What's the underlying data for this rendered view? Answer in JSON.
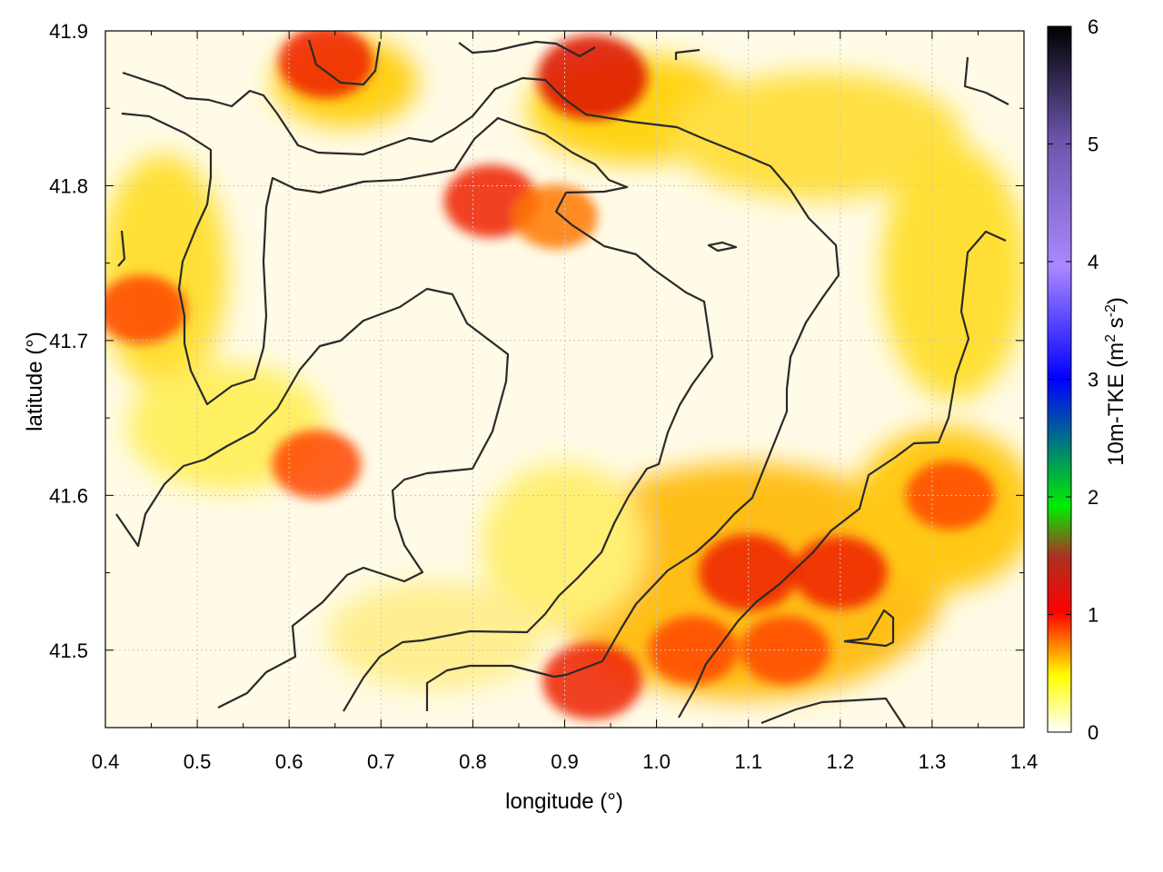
{
  "chart_data": {
    "type": "heatmap",
    "title": "",
    "xlabel": "longitude (°)",
    "ylabel": "latitude (°)",
    "xlim": [
      0.4,
      1.4
    ],
    "ylim": [
      41.45,
      41.9
    ],
    "xticks": [
      "0.4",
      "0.5",
      "0.6",
      "0.7",
      "0.8",
      "0.9",
      "1.0",
      "1.1",
      "1.2",
      "1.3",
      "1.4"
    ],
    "yticks": [
      "41.5",
      "41.6",
      "41.7",
      "41.8",
      "41.9"
    ],
    "grid": true,
    "colorbar": {
      "label_main": "10m-TKE (m",
      "label_sup1": "2",
      "label_mid": " s",
      "label_sup2": "-2",
      "label_end": ")",
      "range": [
        0,
        6
      ],
      "ticks": [
        "0",
        "1",
        "2",
        "3",
        "4",
        "5",
        "6"
      ],
      "colormap": [
        "#ffffff",
        "#ffff00",
        "#ff0000",
        "#00ff00",
        "#0000ff",
        "#aa88ff",
        "#000000"
      ]
    },
    "hotspots": [
      {
        "lon": 0.93,
        "lat": 41.87,
        "value": 1.3
      },
      {
        "lon": 0.64,
        "lat": 41.88,
        "value": 1.0
      },
      {
        "lon": 0.82,
        "lat": 41.79,
        "value": 1.0
      },
      {
        "lon": 0.89,
        "lat": 41.78,
        "value": 0.8
      },
      {
        "lon": 0.44,
        "lat": 41.72,
        "value": 0.9
      },
      {
        "lon": 0.63,
        "lat": 41.62,
        "value": 0.9
      },
      {
        "lon": 1.1,
        "lat": 41.55,
        "value": 1.1
      },
      {
        "lon": 1.2,
        "lat": 41.55,
        "value": 1.0
      },
      {
        "lon": 0.93,
        "lat": 41.48,
        "value": 1.1
      },
      {
        "lon": 1.32,
        "lat": 41.6,
        "value": 0.9
      },
      {
        "lon": 1.04,
        "lat": 41.5,
        "value": 0.9
      },
      {
        "lon": 1.14,
        "lat": 41.5,
        "value": 0.9
      }
    ]
  }
}
